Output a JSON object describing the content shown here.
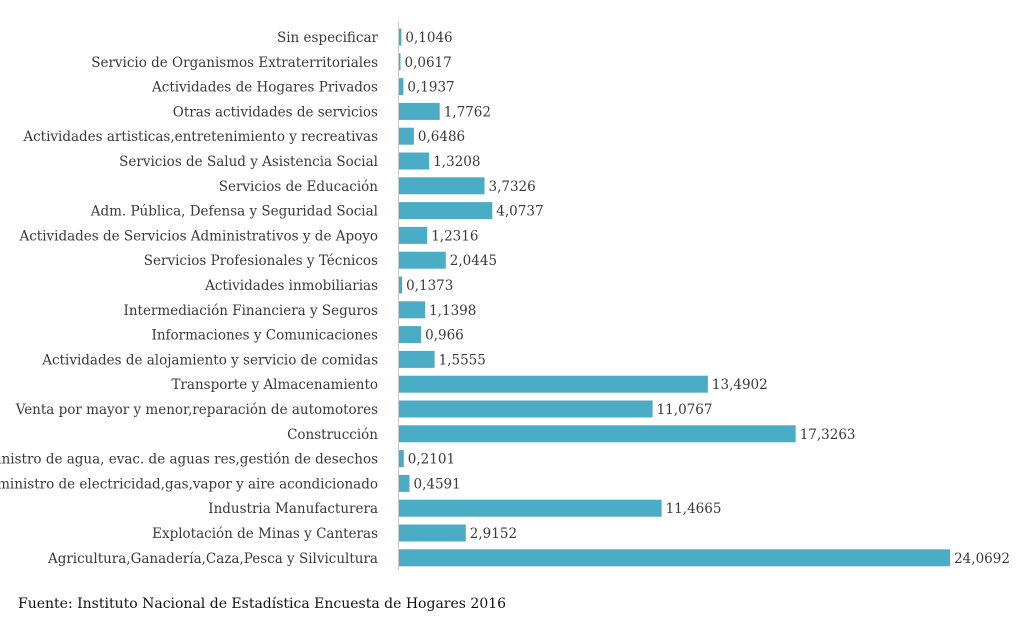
{
  "chart_data": {
    "type": "bar",
    "orientation": "horizontal",
    "title": "",
    "xlabel": "",
    "ylabel": "",
    "xlim": [
      0,
      24.5
    ],
    "grid": false,
    "bar_color": "#4bacc6",
    "categories": [
      "Sin especificar",
      "Servicio de Organismos Extraterritoriales",
      "Actividades de Hogares Privados",
      "Otras actividades de servicios",
      "Actividades artisticas,entretenimiento y recreativas",
      "Servicios de Salud y Asistencia Social",
      "Servicios de Educación",
      "Adm. Pública, Defensa y Seguridad Social",
      "Actividades de Servicios Administrativos y de Apoyo",
      "Servicios Profesionales y Técnicos",
      "Actividades inmobiliarias",
      "Intermediación Financiera y Seguros",
      "Informaciones y Comunicaciones",
      "Actividades de alojamiento y servicio de comidas",
      "Transporte y Almacenamiento",
      "Venta por mayor y menor,reparación de automotores",
      "Construcción",
      "Suministro de agua, evac. de aguas res,gestión de desechos",
      "Suministro de electricidad,gas,vapor y aire acondicionado",
      "Industria Manufacturera",
      "Explotación de Minas y Canteras",
      "Agricultura,Ganadería,Caza,Pesca y Silvicultura"
    ],
    "values": [
      0.1046,
      0.0617,
      0.1937,
      1.7762,
      0.6486,
      1.3208,
      3.7326,
      4.0737,
      1.2316,
      2.0445,
      0.1373,
      1.1398,
      0.966,
      1.5555,
      13.4902,
      11.0767,
      17.3263,
      0.2101,
      0.4591,
      11.4665,
      2.9152,
      24.0692
    ],
    "value_labels": [
      "0,1046",
      "0,0617",
      "0,1937",
      "1,7762",
      "0,6486",
      "1,3208",
      "3,7326",
      "4,0737",
      "1,2316",
      "2,0445",
      "0,1373",
      "1,1398",
      "0,966",
      "1,5555",
      "13,4902",
      "11,0767",
      "17,3263",
      "0,2101",
      "0,4591",
      "11,4665",
      "2,9152",
      "24,0692"
    ]
  },
  "source_note": "Fuente: Instituto Nacional de Estadística Encuesta de Hogares 2016"
}
